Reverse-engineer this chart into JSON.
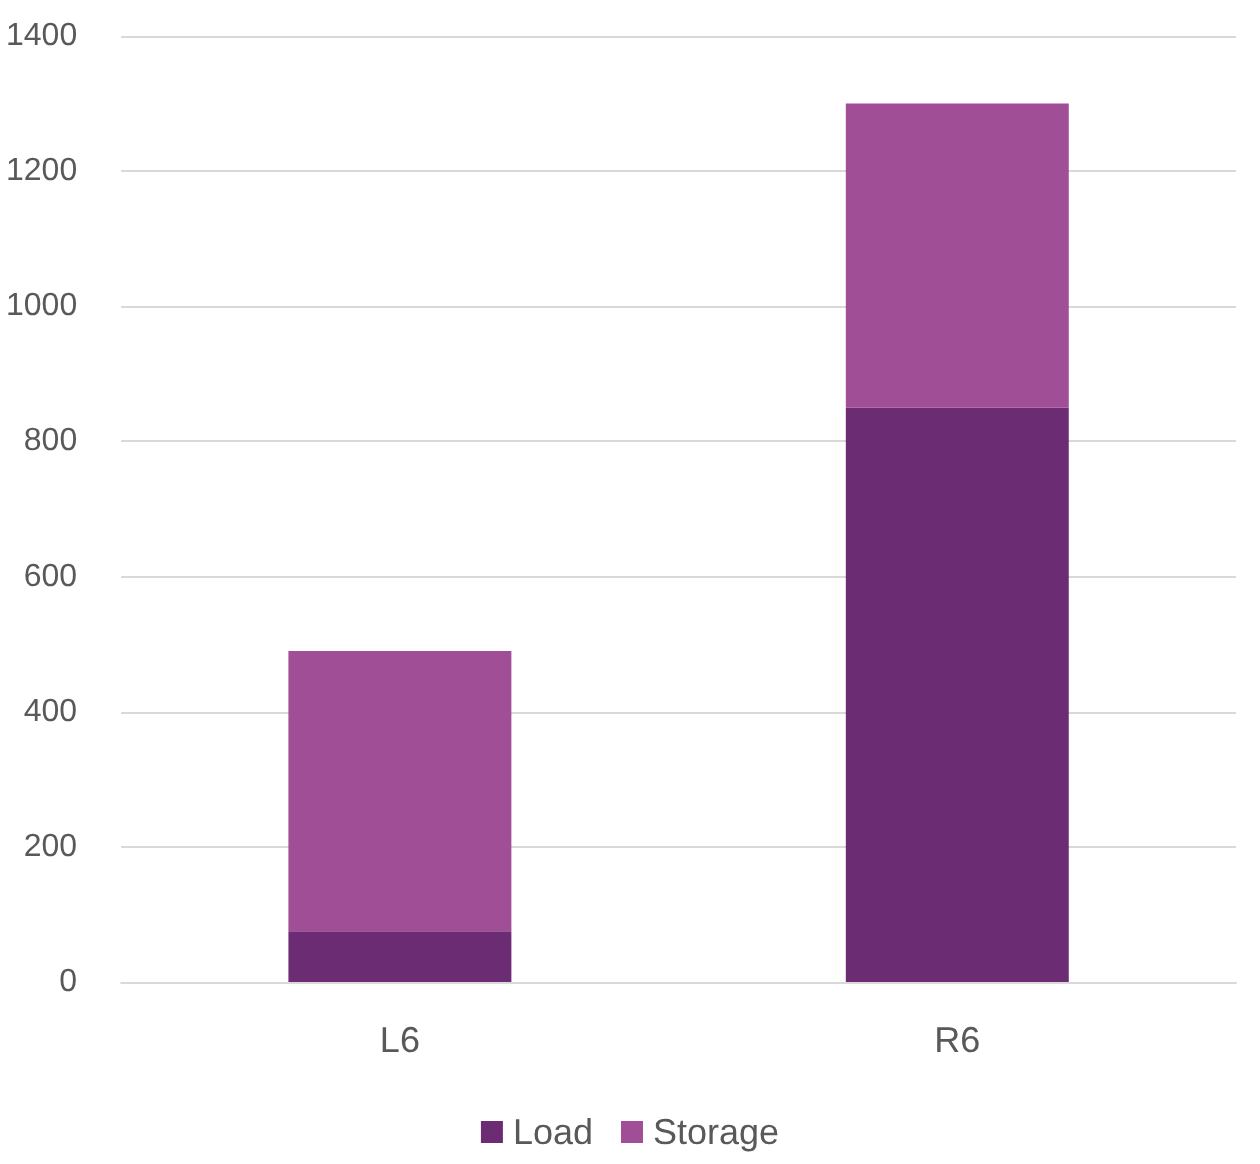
{
  "chart_data": {
    "type": "bar",
    "stacked": true,
    "categories": [
      "L6",
      "R6"
    ],
    "series": [
      {
        "name": "Load",
        "color": "#6b2c74",
        "values": [
          75,
          850
        ]
      },
      {
        "name": "Storage",
        "color": "#a04f97",
        "values": [
          415,
          450
        ]
      }
    ],
    "ylim": [
      0,
      1400
    ],
    "yticks": [
      0,
      200,
      400,
      600,
      800,
      1000,
      1200,
      1400
    ],
    "grid": "y",
    "legend": "bottom"
  }
}
